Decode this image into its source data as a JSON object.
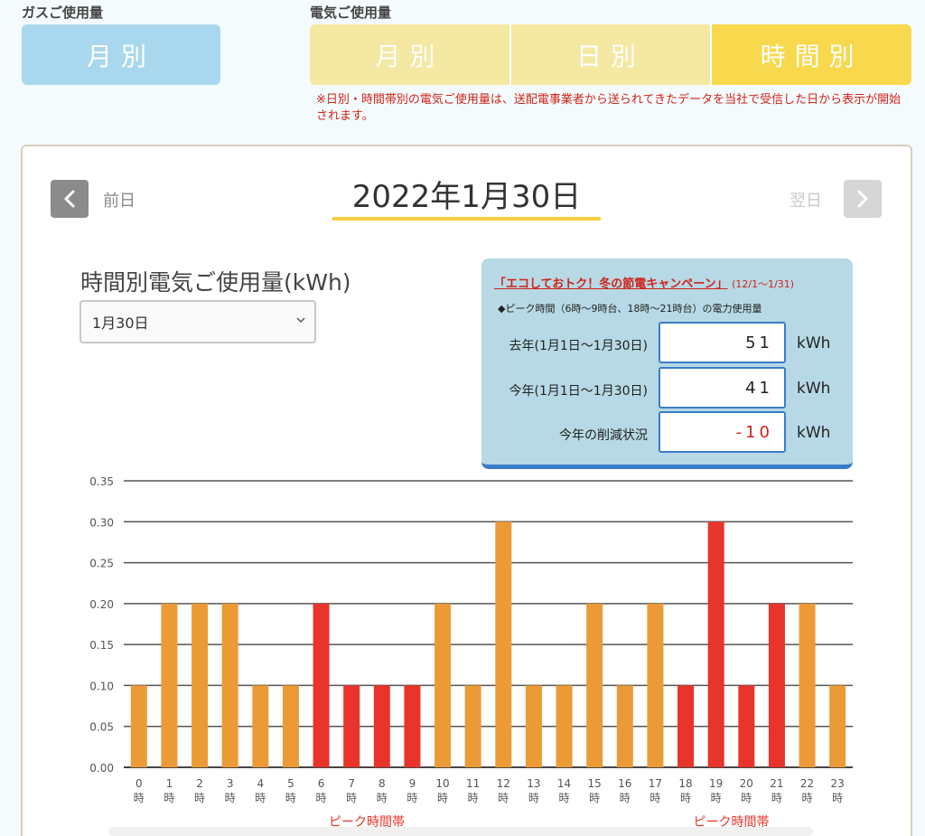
{
  "gas": {
    "section_label": "ガスご使用量",
    "monthly": "月別"
  },
  "electric": {
    "section_label": "電気ご使用量",
    "tabs": [
      {
        "label": "月別",
        "active": false
      },
      {
        "label": "日別",
        "active": false
      },
      {
        "label": "時間別",
        "active": true
      }
    ],
    "notice": "※日別・時間帯別の電気ご使用量は、送配電事業者から送られてきたデータを当社で受信した日から表示が開始されます。"
  },
  "nav": {
    "prev_label": "前日",
    "next_label": "翌日",
    "date": "2022年1月30日"
  },
  "chart_title": "時間別電気ご使用量(kWh)",
  "date_select": {
    "value": "1月30日"
  },
  "campaign": {
    "title": "「エコしておトク！冬の節電キャンペーン」",
    "period": "(12/1～1/31)",
    "note": "◆ピーク時間（6時～9時台、18時～21時台）の電力使用量",
    "rows": [
      {
        "label": "去年(1月1日～1月30日)",
        "value": "51",
        "unit": "kWh"
      },
      {
        "label": "今年(1月1日～1月30日)",
        "value": "41",
        "unit": "kWh"
      },
      {
        "label": "今年の削減状況",
        "value": "-10",
        "unit": "kWh"
      }
    ]
  },
  "colors": {
    "normal_bar": "#ec9a35",
    "peak_bar": "#e8342a",
    "accent": "#f6cf44"
  },
  "chart_data": {
    "type": "bar",
    "categories": [
      "0時",
      "1時",
      "2時",
      "3時",
      "4時",
      "5時",
      "6時",
      "7時",
      "8時",
      "9時",
      "10時",
      "11時",
      "12時",
      "13時",
      "14時",
      "15時",
      "16時",
      "17時",
      "18時",
      "19時",
      "20時",
      "21時",
      "22時",
      "23時"
    ],
    "values": [
      0.1,
      0.2,
      0.2,
      0.2,
      0.1,
      0.1,
      0.2,
      0.1,
      0.1,
      0.1,
      0.2,
      0.1,
      0.3,
      0.1,
      0.1,
      0.2,
      0.1,
      0.2,
      0.1,
      0.3,
      0.1,
      0.2,
      0.2,
      0.1
    ],
    "peak_hours": [
      6,
      7,
      8,
      9,
      18,
      19,
      20,
      21
    ],
    "ylim": [
      0,
      0.35
    ],
    "yticks": [
      "0.00",
      "0.05",
      "0.10",
      "0.15",
      "0.20",
      "0.25",
      "0.30",
      "0.35"
    ],
    "grid": true,
    "peak_label": "ピーク時間帯"
  }
}
